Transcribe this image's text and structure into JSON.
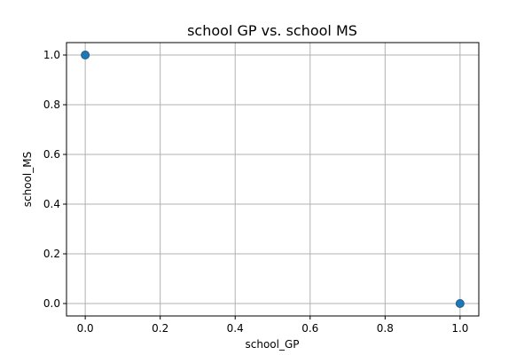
{
  "chart_data": {
    "type": "scatter",
    "title": "school GP vs. school MS",
    "xlabel": "school_GP",
    "ylabel": "school_MS",
    "xlim": [
      -0.05,
      1.05
    ],
    "ylim": [
      -0.05,
      1.05
    ],
    "xticks": [
      0.0,
      0.2,
      0.4,
      0.6,
      0.8,
      1.0
    ],
    "yticks": [
      0.0,
      0.2,
      0.4,
      0.6,
      0.8,
      1.0
    ],
    "xtick_labels": [
      "0.0",
      "0.2",
      "0.4",
      "0.6",
      "0.8",
      "1.0"
    ],
    "ytick_labels": [
      "0.0",
      "0.2",
      "0.4",
      "0.6",
      "0.8",
      "1.0"
    ],
    "grid": true,
    "points": [
      {
        "x": 0.0,
        "y": 1.0
      },
      {
        "x": 1.0,
        "y": 0.0
      }
    ],
    "colors": {
      "marker": "#1f77b4",
      "marker_edge": "#1a5f91",
      "grid": "#b0b0b0",
      "axes": "#000000"
    }
  }
}
